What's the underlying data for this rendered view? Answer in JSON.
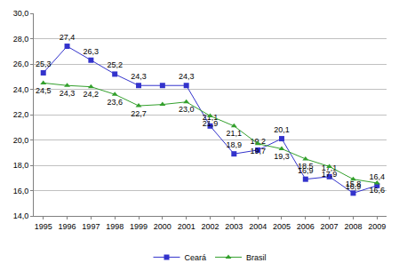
{
  "chart_data": {
    "type": "line",
    "categories": [
      "1995",
      "1996",
      "1997",
      "1998",
      "1999",
      "2000",
      "2001",
      "2002",
      "2003",
      "2004",
      "2005",
      "2006",
      "2007",
      "2008",
      "2009"
    ],
    "series": [
      {
        "name": "Ceará",
        "color": "#3333cc",
        "marker": "square",
        "values": [
          25.3,
          27.4,
          26.3,
          25.2,
          24.3,
          24.3,
          24.3,
          21.1,
          18.9,
          19.2,
          20.1,
          16.9,
          17.1,
          15.8,
          16.4
        ],
        "value_labels": [
          "25,3",
          "27,4",
          "26,3",
          "25,2",
          "24,3",
          null,
          "24,3",
          "21,1",
          "18,9",
          "19,2",
          "20,1",
          "16,9",
          "17,1",
          "15,8",
          "16,4"
        ]
      },
      {
        "name": "Brasil",
        "color": "#33a02c",
        "marker": "triangle-up",
        "values": [
          24.5,
          24.3,
          24.2,
          23.6,
          22.7,
          22.8,
          23.0,
          21.9,
          21.1,
          19.7,
          19.3,
          18.5,
          17.9,
          16.9,
          16.6
        ],
        "value_labels": [
          "24,5",
          "24,3",
          "24,2",
          "23,6",
          "22,7",
          null,
          "23,0",
          "21,9",
          "21,1",
          "19,7",
          "19,3",
          "18,5",
          "17,9",
          "16,9",
          "16,6"
        ]
      }
    ],
    "ylim": [
      14,
      30
    ],
    "yticks": [
      {
        "value": 14,
        "label": "14,0"
      },
      {
        "value": 16,
        "label": "16,0"
      },
      {
        "value": 18,
        "label": "18,0"
      },
      {
        "value": 20,
        "label": "20,0"
      },
      {
        "value": 22,
        "label": "22,0"
      },
      {
        "value": 24,
        "label": "24,0"
      },
      {
        "value": 26,
        "label": "26,0"
      },
      {
        "value": 28,
        "label": "28,0"
      },
      {
        "value": 30,
        "label": "30,0"
      }
    ],
    "grid": true,
    "legend": "bottom",
    "data_labels": true
  }
}
